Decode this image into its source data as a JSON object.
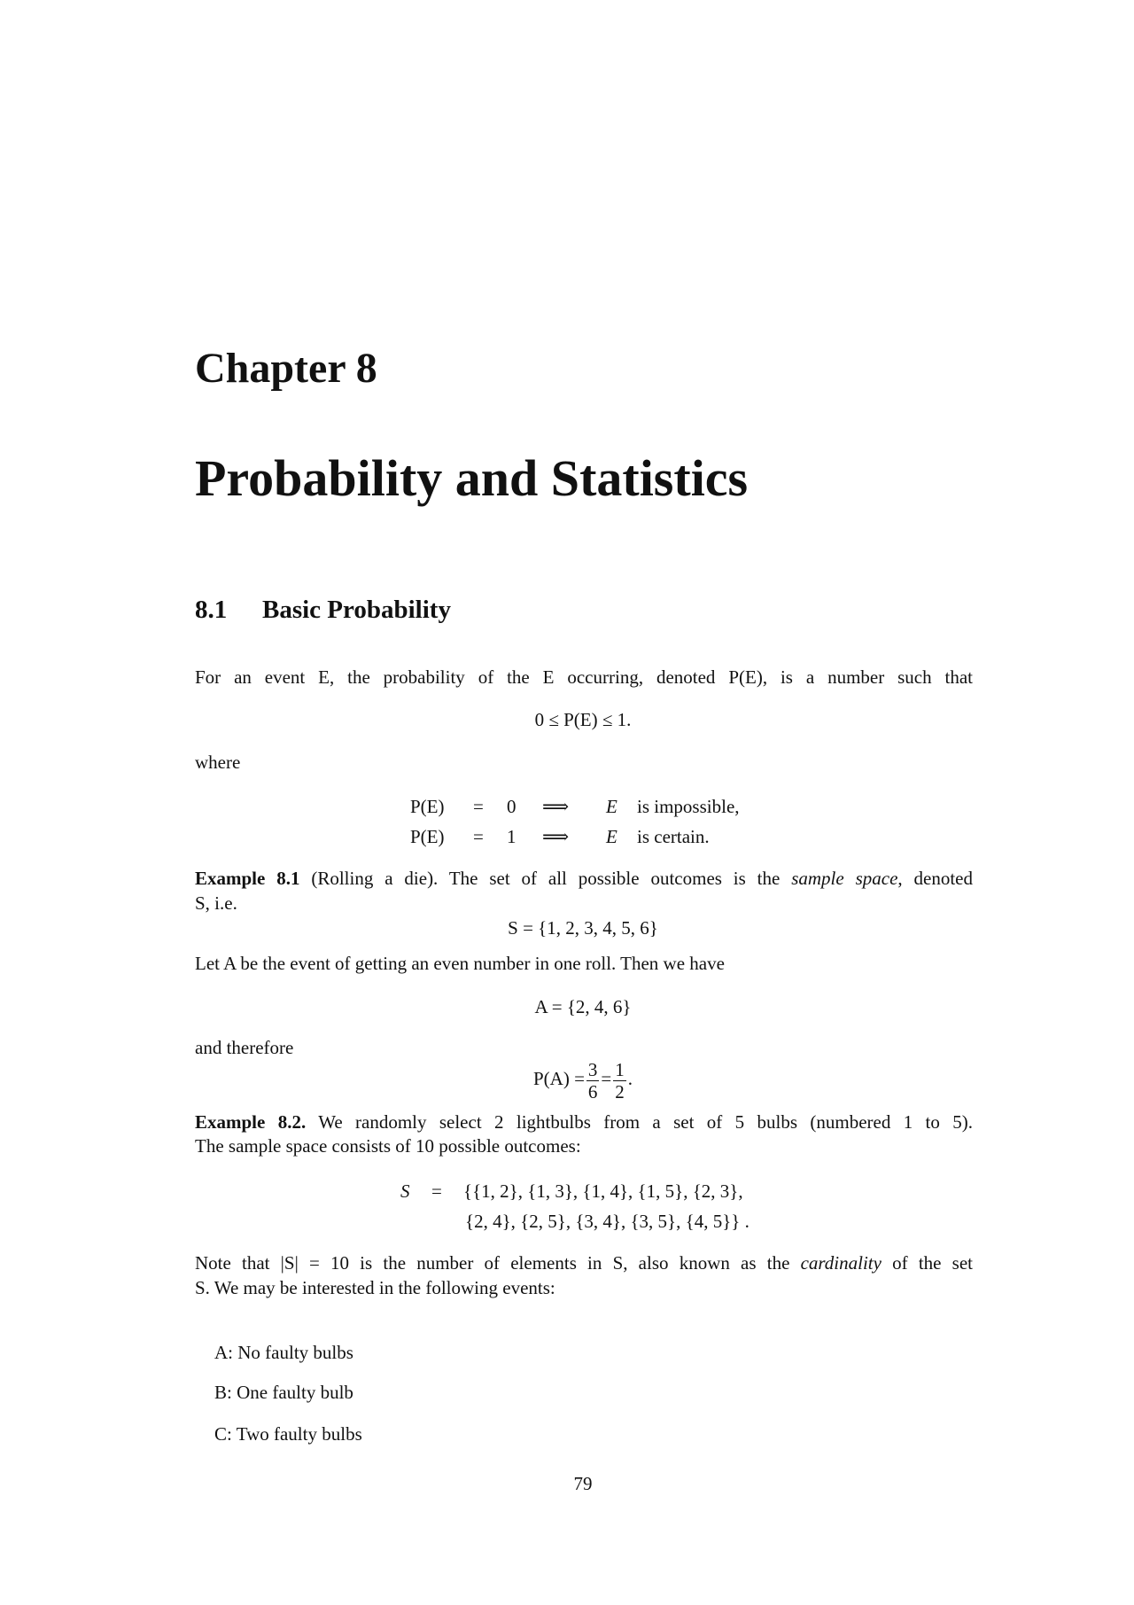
{
  "chapter": {
    "label": "Chapter 8",
    "title": "Probability and Statistics"
  },
  "section": {
    "number": "8.1",
    "title": "Basic Probability"
  },
  "para1": "For an event E, the probability of the E occurring, denoted P(E), is a number such that",
  "eq_bounds": "0 ≤ P(E) ≤ 1.",
  "where": "where",
  "cases": [
    {
      "lhs": "P(E)",
      "eq": "=",
      "val": "0",
      "arrow": "⟹",
      "var": "E",
      "text": "is impossible,"
    },
    {
      "lhs": "P(E)",
      "eq": "=",
      "val": "1",
      "arrow": "⟹",
      "var": "E",
      "text": "is certain."
    }
  ],
  "example1": {
    "label": "Example 8.1",
    "paren": "(Rolling a die).",
    "text_before": "The set of all possible outcomes is the",
    "term": "sample space",
    "text_after": ", denoted",
    "line2": "S, i.e.",
    "eq_S": "S = {1, 2, 3, 4, 5, 6}",
    "let": "Let A be the event of getting an even number in one roll. Then we have",
    "eq_A": "A = {2, 4, 6}",
    "therefore": "and therefore",
    "eq_P_lhs": "P(A) =",
    "frac1": {
      "num": "3",
      "den": "6"
    },
    "frac2": {
      "num": "1",
      "den": "2"
    }
  },
  "example2": {
    "label": "Example 8.2.",
    "line1": "We randomly select 2 lightbulbs from a set of 5 bulbs (numbered 1 to 5).",
    "line2": "The sample space consists of 10 possible outcomes:",
    "S_lhs": "S",
    "S_eq": "=",
    "S_row1": "{{1, 2}, {1, 3}, {1, 4}, {1, 5}, {2, 3},",
    "S_row2": "{2, 4}, {2, 5}, {3, 4}, {3, 5}, {4, 5}} ."
  },
  "note": {
    "before": "Note that |S| = 10 is the number of elements in S, also known as the",
    "term": "cardinality",
    "after": "of the set",
    "line2": "S. We may be interested in the following events:"
  },
  "events": [
    {
      "label": "A:",
      "text": "No faulty bulbs"
    },
    {
      "label": "B:",
      "text": "One faulty bulb"
    },
    {
      "label": "C:",
      "text": "Two faulty bulbs"
    }
  ],
  "page_number": "79"
}
